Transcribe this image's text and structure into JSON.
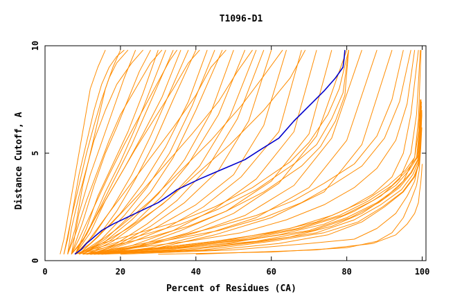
{
  "chart_data": {
    "type": "line",
    "title": "T1096-D1",
    "xlabel": "Percent of Residues (CA)",
    "ylabel": "Distance Cutoff, A",
    "xlim": [
      0,
      101
    ],
    "ylim": [
      0,
      10
    ],
    "x_ticks": [
      0,
      20,
      40,
      60,
      80,
      100
    ],
    "y_ticks": [
      0,
      5,
      10
    ],
    "grid": false,
    "highlight_color": "#0000cc",
    "background_color": "#ff8c00",
    "highlight_series": {
      "x": [
        7.9,
        9.5,
        11,
        13,
        15,
        18,
        21,
        24,
        27,
        30,
        33,
        35,
        38,
        41,
        45,
        49,
        53,
        57,
        62,
        66,
        70,
        74,
        77,
        79,
        79.3,
        79.5
      ],
      "y": [
        0.3,
        0.5,
        0.8,
        1.1,
        1.4,
        1.7,
        1.95,
        2.2,
        2.45,
        2.7,
        3.05,
        3.3,
        3.55,
        3.8,
        4.1,
        4.4,
        4.7,
        5.15,
        5.7,
        6.5,
        7.2,
        7.9,
        8.5,
        9.0,
        9.4,
        9.8
      ]
    },
    "background_series": [
      {
        "x": [
          5,
          7,
          9,
          11,
          13,
          15,
          17,
          19,
          21
        ],
        "y": [
          0.3,
          2,
          4,
          5.5,
          7,
          8.2,
          9,
          9.5,
          9.8
        ]
      },
      {
        "x": [
          6,
          8,
          10,
          12,
          14,
          16,
          18,
          20
        ],
        "y": [
          0.3,
          1.5,
          3.5,
          5,
          6.5,
          8,
          9,
          9.8
        ]
      },
      {
        "x": [
          7,
          9,
          12,
          15,
          18,
          21,
          24
        ],
        "y": [
          0.3,
          2.2,
          4,
          5.5,
          7,
          8.5,
          9.8
        ]
      },
      {
        "x": [
          7,
          10,
          13,
          16,
          19,
          22,
          25,
          28
        ],
        "y": [
          0.3,
          1.8,
          3.5,
          5,
          6.2,
          7.5,
          8.8,
          9.8
        ]
      },
      {
        "x": [
          8,
          11,
          14,
          18,
          22,
          26,
          30
        ],
        "y": [
          0.3,
          1.5,
          3,
          4.5,
          6,
          7.8,
          9.8
        ]
      },
      {
        "x": [
          8,
          12,
          16,
          20,
          24,
          28,
          32
        ],
        "y": [
          0.3,
          1.6,
          3.2,
          4.6,
          6.2,
          8,
          9.8
        ]
      },
      {
        "x": [
          7,
          11,
          15,
          19,
          23,
          27,
          31,
          34
        ],
        "y": [
          0.3,
          1.2,
          2.6,
          4,
          5.4,
          7,
          8.6,
          9.8
        ]
      },
      {
        "x": [
          8,
          12,
          16,
          21,
          26,
          31,
          36
        ],
        "y": [
          0.3,
          1.3,
          2.8,
          4.3,
          5.9,
          7.6,
          9.8
        ]
      },
      {
        "x": [
          8,
          13,
          18,
          23,
          28,
          33,
          38
        ],
        "y": [
          0.3,
          1.2,
          2.5,
          4,
          5.8,
          7.8,
          9.8
        ]
      },
      {
        "x": [
          9,
          14,
          19,
          24,
          29,
          34,
          40
        ],
        "y": [
          0.3,
          1.1,
          2.3,
          3.8,
          5.5,
          7.5,
          9.8
        ]
      },
      {
        "x": [
          9,
          14,
          20,
          26,
          32,
          38,
          43
        ],
        "y": [
          0.3,
          1.1,
          2.2,
          3.6,
          5.3,
          7.4,
          9.8
        ]
      },
      {
        "x": [
          9,
          15,
          21,
          27,
          33,
          39,
          45
        ],
        "y": [
          0.3,
          1.0,
          2.1,
          3.4,
          5.0,
          7.2,
          9.8
        ]
      },
      {
        "x": [
          10,
          16,
          22,
          28,
          34,
          40,
          47
        ],
        "y": [
          0.3,
          1.0,
          2.0,
          3.2,
          4.8,
          7.0,
          9.8
        ]
      },
      {
        "x": [
          10,
          16,
          23,
          30,
          37,
          44,
          50
        ],
        "y": [
          0.3,
          0.9,
          1.9,
          3.1,
          4.7,
          6.9,
          9.8
        ]
      },
      {
        "x": [
          10,
          17,
          24,
          31,
          38,
          46,
          53
        ],
        "y": [
          0.3,
          0.9,
          1.8,
          3.0,
          4.5,
          6.8,
          9.8
        ]
      },
      {
        "x": [
          11,
          18,
          25,
          33,
          41,
          49,
          56
        ],
        "y": [
          0.3,
          0.9,
          1.8,
          2.9,
          4.4,
          6.7,
          9.8
        ]
      },
      {
        "x": [
          11,
          19,
          27,
          35,
          43,
          51,
          58
        ],
        "y": [
          0.3,
          0.8,
          1.7,
          2.8,
          4.3,
          6.6,
          9.8
        ]
      },
      {
        "x": [
          12,
          20,
          28,
          37,
          46,
          54,
          60
        ],
        "y": [
          0.3,
          0.8,
          1.6,
          2.7,
          4.2,
          6.5,
          9.8
        ]
      },
      {
        "x": [
          12,
          21,
          30,
          40,
          50,
          58,
          64
        ],
        "y": [
          0.3,
          0.8,
          1.6,
          2.6,
          4.0,
          6.3,
          9.8
        ]
      },
      {
        "x": [
          13,
          22,
          32,
          42,
          52,
          62,
          68
        ],
        "y": [
          0.3,
          0.8,
          1.5,
          2.5,
          3.9,
          6.0,
          9.8
        ]
      },
      {
        "x": [
          13,
          23,
          34,
          45,
          56,
          66,
          72
        ],
        "y": [
          0.3,
          0.7,
          1.4,
          2.4,
          3.8,
          6.0,
          9.8
        ]
      },
      {
        "x": [
          14,
          25,
          36,
          48,
          60,
          70,
          76
        ],
        "y": [
          0.3,
          0.7,
          1.4,
          2.3,
          3.7,
          5.9,
          9.8
        ]
      },
      {
        "x": [
          14,
          26,
          38,
          50,
          62,
          72,
          80
        ],
        "y": [
          0.3,
          0.7,
          1.3,
          2.2,
          3.6,
          5.8,
          9.8
        ]
      },
      {
        "x": [
          15,
          27,
          40,
          53,
          66,
          76,
          84
        ],
        "y": [
          0.3,
          0.7,
          1.3,
          2.1,
          3.5,
          5.7,
          9.8
        ]
      },
      {
        "x": [
          15,
          28,
          42,
          56,
          70,
          80,
          88
        ],
        "y": [
          0.3,
          0.6,
          1.2,
          2.0,
          3.4,
          5.6,
          9.8
        ]
      },
      {
        "x": [
          16,
          30,
          45,
          60,
          74,
          84,
          92
        ],
        "y": [
          0.3,
          0.6,
          1.2,
          2.0,
          3.2,
          5.4,
          9.8
        ]
      },
      {
        "x": [
          8,
          15,
          25,
          35,
          45,
          55,
          65,
          70,
          75,
          78,
          80.5
        ],
        "y": [
          0.3,
          0.8,
          1.3,
          1.8,
          2.5,
          3.4,
          4.6,
          5.5,
          6.8,
          8.0,
          9.8
        ]
      },
      {
        "x": [
          8,
          16,
          26,
          36,
          46,
          56,
          66,
          72,
          76,
          79,
          80.5
        ],
        "y": [
          0.3,
          0.7,
          1.2,
          1.7,
          2.4,
          3.3,
          4.5,
          5.4,
          6.6,
          7.8,
          9.8
        ]
      },
      {
        "x": [
          9,
          18,
          28,
          38,
          48,
          58,
          68,
          73,
          77,
          79.5,
          80.5
        ],
        "y": [
          0.3,
          0.7,
          1.1,
          1.6,
          2.3,
          3.2,
          4.4,
          5.3,
          6.5,
          7.7,
          9.8
        ]
      },
      {
        "x": [
          10,
          20,
          32,
          44,
          56,
          66,
          74,
          82,
          88,
          92,
          95
        ],
        "y": [
          0.3,
          0.6,
          1.0,
          1.5,
          2.1,
          2.8,
          3.6,
          4.5,
          5.8,
          7.5,
          9.8
        ]
      },
      {
        "x": [
          10,
          22,
          34,
          46,
          58,
          68,
          76,
          84,
          90,
          94,
          97
        ],
        "y": [
          0.3,
          0.6,
          1.0,
          1.4,
          2.0,
          2.7,
          3.5,
          4.4,
          5.7,
          7.4,
          9.8
        ]
      },
      {
        "x": [
          11,
          24,
          38,
          52,
          64,
          74,
          82,
          88,
          93,
          96,
          98
        ],
        "y": [
          0.3,
          0.6,
          0.9,
          1.3,
          1.9,
          2.6,
          3.4,
          4.3,
          5.6,
          7.3,
          9.8
        ]
      },
      {
        "x": [
          12,
          30,
          45,
          60,
          72,
          80,
          87,
          92,
          95,
          97,
          99
        ],
        "y": [
          0.3,
          0.6,
          0.9,
          1.3,
          1.8,
          2.4,
          3.1,
          3.9,
          5.0,
          6.8,
          9.8
        ]
      },
      {
        "x": [
          12,
          32,
          48,
          62,
          74,
          82,
          89,
          94,
          97,
          98.5,
          99.5
        ],
        "y": [
          0.3,
          0.5,
          0.8,
          1.2,
          1.7,
          2.3,
          3.0,
          3.8,
          5.0,
          6.8,
          9.8
        ]
      },
      {
        "x": [
          13,
          35,
          52,
          65,
          76,
          84,
          90,
          95,
          98,
          99,
          99.7
        ],
        "y": [
          0.3,
          0.5,
          0.8,
          1.1,
          1.6,
          2.2,
          2.9,
          3.7,
          4.8,
          6.6,
          9.8
        ]
      },
      {
        "x": [
          10,
          30,
          50,
          65,
          76,
          85,
          91,
          95.5,
          98,
          99,
          99.5
        ],
        "y": [
          0.3,
          0.6,
          1.0,
          1.5,
          2.1,
          2.8,
          3.5,
          4.2,
          4.8,
          6.0,
          7.5
        ]
      },
      {
        "x": [
          11,
          32,
          52,
          67,
          78,
          86,
          92,
          96,
          98.5,
          99.2,
          99.6
        ],
        "y": [
          0.3,
          0.6,
          1.0,
          1.5,
          2.1,
          2.8,
          3.5,
          4.2,
          4.8,
          6.0,
          7.5
        ]
      },
      {
        "x": [
          11,
          34,
          54,
          68,
          79,
          87,
          93,
          96.5,
          98.7,
          99.3,
          99.7
        ],
        "y": [
          0.3,
          0.6,
          1.0,
          1.5,
          2.1,
          2.8,
          3.5,
          4.2,
          4.8,
          6.0,
          7.5
        ]
      },
      {
        "x": [
          12,
          35,
          55,
          70,
          80,
          88,
          93.5,
          97,
          98.8,
          99.4,
          99.8
        ],
        "y": [
          0.3,
          0.6,
          1.0,
          1.4,
          2.0,
          2.7,
          3.4,
          4.1,
          4.7,
          5.9,
          7.4
        ]
      },
      {
        "x": [
          12,
          36,
          56,
          71,
          81,
          88.5,
          94,
          97.2,
          99,
          99.5,
          99.8
        ],
        "y": [
          0.3,
          0.6,
          0.9,
          1.4,
          2.0,
          2.7,
          3.4,
          4.1,
          4.7,
          5.8,
          7.2
        ]
      },
      {
        "x": [
          13,
          38,
          58,
          72,
          82,
          89,
          94.5,
          97.5,
          99,
          99.5,
          99.9
        ],
        "y": [
          0.3,
          0.5,
          0.9,
          1.3,
          1.9,
          2.6,
          3.3,
          4.0,
          4.6,
          5.7,
          7.0
        ]
      },
      {
        "x": [
          15,
          45,
          62,
          75,
          84,
          90,
          95,
          98,
          99.2,
          99.6,
          99.9
        ],
        "y": [
          0.3,
          0.5,
          0.8,
          1.2,
          1.8,
          2.5,
          3.2,
          3.9,
          4.5,
          5.5,
          6.8
        ]
      },
      {
        "x": [
          14,
          42,
          60,
          74,
          83,
          89.5,
          94.8,
          97.8,
          99.1,
          99.5,
          99.9
        ],
        "y": [
          0.3,
          0.5,
          0.9,
          1.3,
          1.8,
          2.5,
          3.2,
          3.9,
          4.5,
          5.6,
          6.9
        ]
      },
      {
        "x": [
          20,
          50,
          70,
          82,
          88,
          93,
          96,
          98,
          99,
          99.5,
          99.8
        ],
        "y": [
          0.3,
          0.5,
          0.8,
          1.0,
          1.5,
          2.2,
          3.0,
          3.7,
          4.5,
          5.8,
          7.0
        ]
      },
      {
        "x": [
          30,
          60,
          80,
          88,
          92,
          95,
          97,
          98.5,
          99.2,
          99.6,
          99.9
        ],
        "y": [
          0.3,
          0.4,
          0.6,
          0.9,
          1.3,
          2.0,
          2.8,
          3.5,
          4.2,
          5.2,
          6.2
        ]
      },
      {
        "x": [
          40,
          72,
          87,
          93,
          96,
          98,
          99,
          99.3,
          99.6,
          99.8,
          100
        ],
        "y": [
          0.3,
          0.5,
          0.8,
          1.2,
          1.7,
          2.2,
          2.7,
          3.2,
          3.6,
          4.0,
          4.5
        ]
      },
      {
        "x": [
          4,
          5,
          6,
          7,
          8,
          9,
          10,
          11,
          12,
          14,
          16
        ],
        "y": [
          0.3,
          1.0,
          2.0,
          3.0,
          4.0,
          5.0,
          6.0,
          7.0,
          8.0,
          9.0,
          9.8
        ]
      },
      {
        "x": [
          5,
          6,
          7,
          9,
          11,
          13,
          15,
          17,
          19,
          22
        ],
        "y": [
          0.3,
          1.0,
          2.0,
          3.5,
          5.0,
          6.3,
          7.5,
          8.5,
          9.2,
          9.8
        ]
      },
      {
        "x": [
          6,
          7,
          9,
          11,
          13,
          16,
          19,
          23,
          26
        ],
        "y": [
          0.3,
          1.5,
          3.0,
          4.3,
          5.6,
          7.0,
          8.2,
          9.2,
          9.8
        ]
      },
      {
        "x": [
          6,
          8,
          11,
          14,
          17,
          20,
          24,
          28,
          31
        ],
        "y": [
          0.3,
          1.2,
          2.8,
          4.2,
          5.6,
          6.8,
          8.0,
          9.2,
          9.8
        ]
      },
      {
        "x": [
          7,
          9,
          13,
          17,
          21,
          25,
          29,
          33,
          35
        ],
        "y": [
          0.3,
          1.0,
          2.5,
          4.0,
          5.4,
          6.7,
          8.0,
          9.3,
          9.8
        ]
      },
      {
        "x": [
          7,
          10,
          14,
          19,
          24,
          29,
          34,
          38,
          41
        ],
        "y": [
          0.3,
          0.9,
          2.2,
          3.7,
          5.2,
          6.6,
          8.0,
          9.2,
          9.8
        ]
      },
      {
        "x": [
          8,
          11,
          16,
          22,
          28,
          34,
          40,
          44,
          48
        ],
        "y": [
          0.3,
          0.8,
          2.0,
          3.4,
          4.8,
          6.2,
          7.7,
          9.0,
          9.8
        ]
      },
      {
        "x": [
          8,
          12,
          18,
          25,
          32,
          39,
          46,
          51,
          55
        ],
        "y": [
          0.3,
          0.8,
          1.8,
          3.1,
          4.5,
          5.9,
          7.4,
          8.8,
          9.8
        ]
      },
      {
        "x": [
          9,
          13,
          20,
          28,
          36,
          44,
          52,
          58,
          63
        ],
        "y": [
          0.3,
          0.7,
          1.6,
          2.8,
          4.2,
          5.6,
          7.2,
          8.6,
          9.8
        ]
      },
      {
        "x": [
          9,
          14,
          22,
          31,
          40,
          49,
          58,
          65,
          69
        ],
        "y": [
          0.3,
          0.7,
          1.5,
          2.6,
          4.0,
          5.4,
          7.0,
          8.5,
          9.8
        ]
      }
    ]
  }
}
